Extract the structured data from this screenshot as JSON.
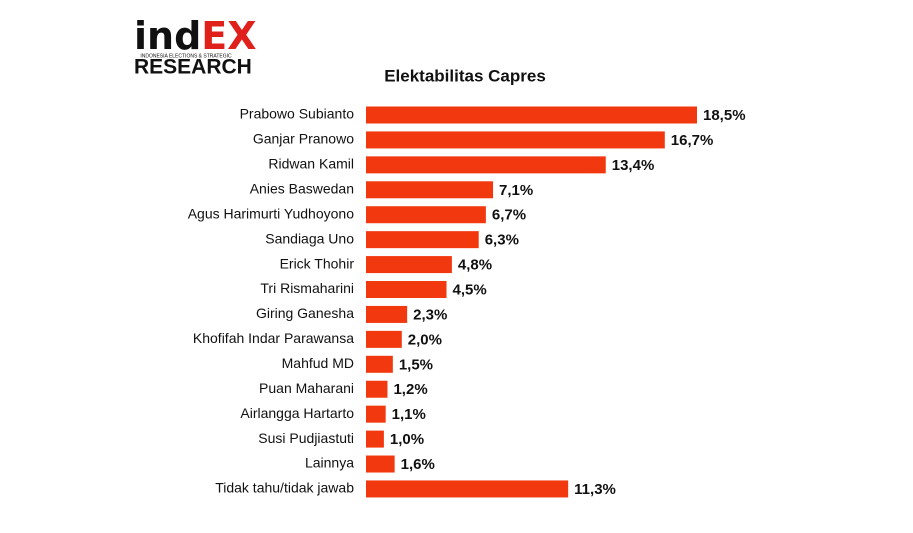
{
  "logo": {
    "brand_start": "ind",
    "brand_end": "EX",
    "tagline": "INDONESIA ELECTIONS & STRATEGIC",
    "name": "RESEARCH"
  },
  "chart_data": {
    "type": "hbar",
    "title": "Elektabilitas Capres",
    "color": "#f2380f",
    "categories": [
      "Prabowo Subianto",
      "Ganjar Pranowo",
      "Ridwan Kamil",
      "Anies Baswedan",
      "Agus Harimurti Yudhoyono",
      "Sandiaga Uno",
      "Erick Thohir",
      "Tri Rismaharini",
      "Giring Ganesha",
      "Khofifah Indar Parawansa",
      "Mahfud MD",
      "Puan Maharani",
      "Airlangga Hartarto",
      "Susi Pudjiastuti",
      "Lainnya",
      "Tidak tahu/tidak jawab"
    ],
    "values": [
      18.5,
      16.7,
      13.4,
      7.1,
      6.7,
      6.3,
      4.8,
      4.5,
      2.3,
      2.0,
      1.5,
      1.2,
      1.1,
      1.0,
      1.6,
      11.3
    ],
    "value_labels": [
      "18,5%",
      "16,7%",
      "13,4%",
      "7,1%",
      "6,7%",
      "6,3%",
      "4,8%",
      "4,5%",
      "2,3%",
      "2,0%",
      "1,5%",
      "1,2%",
      "1,1%",
      "1,0%",
      "1,6%",
      "11,3%"
    ]
  }
}
